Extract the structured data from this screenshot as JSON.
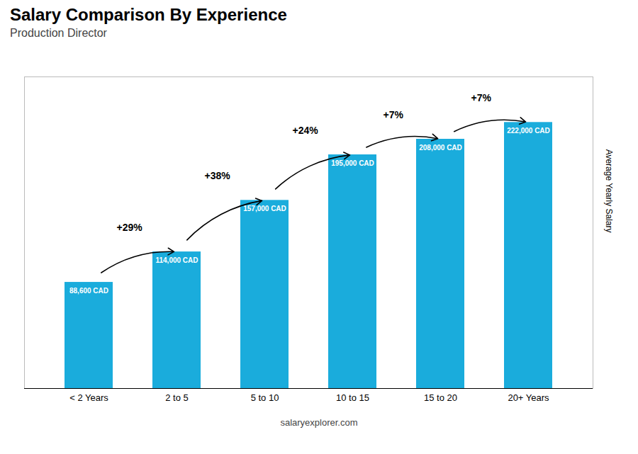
{
  "chart_data": {
    "type": "bar",
    "title": "Salary Comparison By Experience",
    "subtitle": "Production Director",
    "ylabel": "Average Yearly Salary",
    "categories": [
      "< 2 Years",
      "2 to 5",
      "5 to 10",
      "10 to 15",
      "15 to 20",
      "20+ Years"
    ],
    "values": [
      88600,
      114000,
      157000,
      195000,
      208000,
      222000
    ],
    "value_labels": [
      "88,600 CAD",
      "114,000 CAD",
      "157,000 CAD",
      "195,000 CAD",
      "208,000 CAD",
      "222,000 CAD"
    ],
    "color": "#1aacdc",
    "ylim": [
      0,
      260000
    ],
    "tick_labels": "x",
    "data_labels": true,
    "annotations": [
      {
        "text": "+29%",
        "from": "< 2 Years",
        "to": "2 to 5"
      },
      {
        "text": "+38%",
        "from": "2 to 5",
        "to": "5 to 10"
      },
      {
        "text": "+24%",
        "from": "5 to 10",
        "to": "10 to 15"
      },
      {
        "text": "+7%",
        "from": "10 to 15",
        "to": "15 to 20"
      },
      {
        "text": "+7%",
        "from": "15 to 20",
        "to": "20+ Years"
      },
      {
        "text": "salaryexplorer.com"
      }
    ]
  }
}
